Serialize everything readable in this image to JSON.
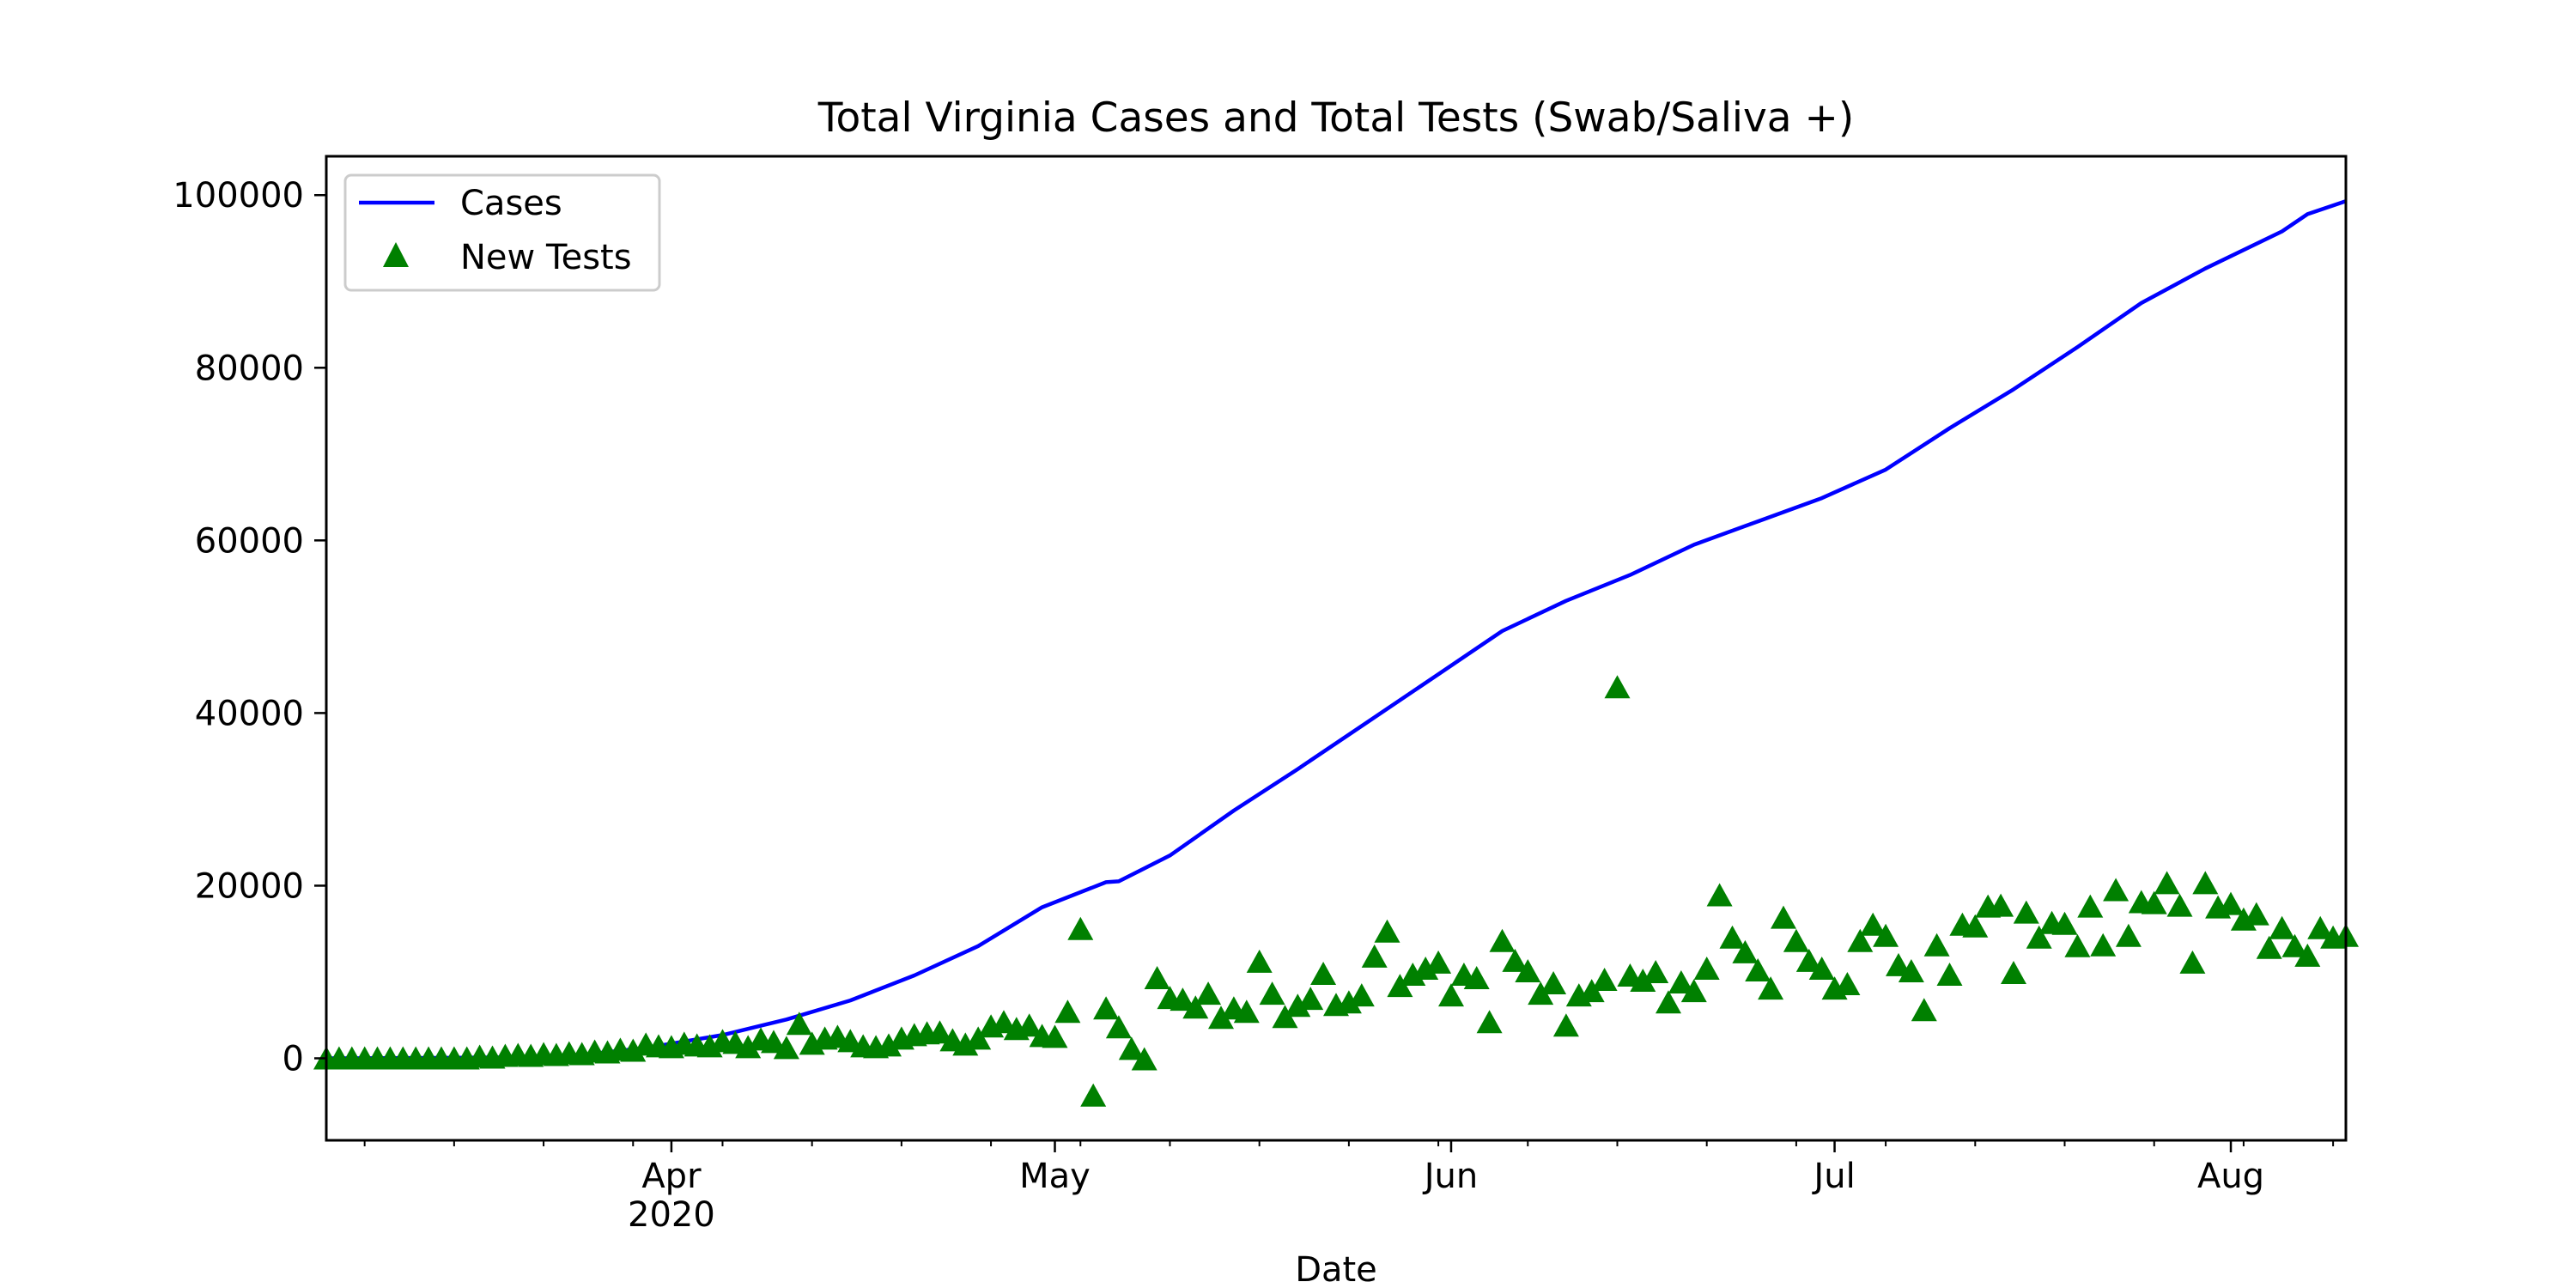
{
  "chart_data": {
    "type": "line",
    "title": "Total Virginia Cases and Total Tests (Swab/Saliva +)",
    "xlabel": "Date",
    "ylabel": "",
    "x_range": [
      "2020-03-05",
      "2020-08-10"
    ],
    "ylim": [
      -9500,
      104500
    ],
    "grid": false,
    "legend_position": "top-left",
    "x_ticks": [
      {
        "date": "2020-04-01",
        "label": "Apr",
        "sublabel": "2020"
      },
      {
        "date": "2020-05-01",
        "label": "May",
        "sublabel": ""
      },
      {
        "date": "2020-06-01",
        "label": "Jun",
        "sublabel": ""
      },
      {
        "date": "2020-07-01",
        "label": "Jul",
        "sublabel": ""
      },
      {
        "date": "2020-08-01",
        "label": "Aug",
        "sublabel": ""
      }
    ],
    "x_minor_tick_dates": [
      "2020-03-08",
      "2020-03-15",
      "2020-03-22",
      "2020-03-29",
      "2020-04-05",
      "2020-04-12",
      "2020-04-19",
      "2020-04-26",
      "2020-05-03",
      "2020-05-10",
      "2020-05-17",
      "2020-05-24",
      "2020-05-31",
      "2020-06-07",
      "2020-06-14",
      "2020-06-21",
      "2020-06-28",
      "2020-07-05",
      "2020-07-12",
      "2020-07-19",
      "2020-07-26",
      "2020-08-02",
      "2020-08-09"
    ],
    "y_ticks": [
      0,
      20000,
      40000,
      60000,
      80000,
      100000
    ],
    "y_tick_labels": [
      "0",
      "20000",
      "40000",
      "60000",
      "80000",
      "100000"
    ],
    "series": [
      {
        "name": "Cases",
        "type": "line",
        "color": "#0000ff",
        "x": [
          "2020-03-05",
          "2020-03-10",
          "2020-03-15",
          "2020-03-20",
          "2020-03-25",
          "2020-03-30",
          "2020-04-05",
          "2020-04-10",
          "2020-04-15",
          "2020-04-20",
          "2020-04-25",
          "2020-04-30",
          "2020-05-05",
          "2020-05-06",
          "2020-05-10",
          "2020-05-15",
          "2020-05-20",
          "2020-05-25",
          "2020-05-31",
          "2020-06-05",
          "2020-06-10",
          "2020-06-15",
          "2020-06-20",
          "2020-06-25",
          "2020-06-30",
          "2020-07-05",
          "2020-07-10",
          "2020-07-15",
          "2020-07-20",
          "2020-07-25",
          "2020-07-30",
          "2020-08-05",
          "2020-08-07",
          "2020-08-10"
        ],
        "y": [
          0,
          30,
          60,
          120,
          400,
          1200,
          2700,
          4500,
          6700,
          9600,
          13000,
          17500,
          20400,
          20500,
          23500,
          28700,
          33500,
          38500,
          44500,
          49500,
          53000,
          56000,
          59500,
          62200,
          64900,
          68200,
          73000,
          77500,
          82400,
          87500,
          91500,
          95800,
          97800,
          99300
        ]
      },
      {
        "name": "New Tests",
        "type": "scatter",
        "marker": "triangle",
        "color": "#008000",
        "x": [
          "2020-03-05",
          "2020-03-06",
          "2020-03-07",
          "2020-03-08",
          "2020-03-09",
          "2020-03-10",
          "2020-03-11",
          "2020-03-12",
          "2020-03-13",
          "2020-03-14",
          "2020-03-15",
          "2020-03-16",
          "2020-03-17",
          "2020-03-18",
          "2020-03-19",
          "2020-03-20",
          "2020-03-21",
          "2020-03-22",
          "2020-03-23",
          "2020-03-24",
          "2020-03-25",
          "2020-03-26",
          "2020-03-27",
          "2020-03-28",
          "2020-03-29",
          "2020-03-30",
          "2020-03-31",
          "2020-04-01",
          "2020-04-02",
          "2020-04-03",
          "2020-04-04",
          "2020-04-05",
          "2020-04-06",
          "2020-04-07",
          "2020-04-08",
          "2020-04-09",
          "2020-04-10",
          "2020-04-11",
          "2020-04-12",
          "2020-04-13",
          "2020-04-14",
          "2020-04-15",
          "2020-04-16",
          "2020-04-17",
          "2020-04-18",
          "2020-04-19",
          "2020-04-20",
          "2020-04-21",
          "2020-04-22",
          "2020-04-23",
          "2020-04-24",
          "2020-04-25",
          "2020-04-26",
          "2020-04-27",
          "2020-04-28",
          "2020-04-29",
          "2020-04-30",
          "2020-05-01",
          "2020-05-02",
          "2020-05-03",
          "2020-05-04",
          "2020-05-05",
          "2020-05-06",
          "2020-05-07",
          "2020-05-08",
          "2020-05-09",
          "2020-05-10",
          "2020-05-11",
          "2020-05-12",
          "2020-05-13",
          "2020-05-14",
          "2020-05-15",
          "2020-05-16",
          "2020-05-17",
          "2020-05-18",
          "2020-05-19",
          "2020-05-20",
          "2020-05-21",
          "2020-05-22",
          "2020-05-23",
          "2020-05-24",
          "2020-05-25",
          "2020-05-26",
          "2020-05-27",
          "2020-05-28",
          "2020-05-29",
          "2020-05-30",
          "2020-05-31",
          "2020-06-01",
          "2020-06-02",
          "2020-06-03",
          "2020-06-04",
          "2020-06-05",
          "2020-06-06",
          "2020-06-07",
          "2020-06-08",
          "2020-06-09",
          "2020-06-10",
          "2020-06-11",
          "2020-06-12",
          "2020-06-13",
          "2020-06-14",
          "2020-06-15",
          "2020-06-16",
          "2020-06-17",
          "2020-06-18",
          "2020-06-19",
          "2020-06-20",
          "2020-06-21",
          "2020-06-22",
          "2020-06-23",
          "2020-06-24",
          "2020-06-25",
          "2020-06-26",
          "2020-06-27",
          "2020-06-28",
          "2020-06-29",
          "2020-06-30",
          "2020-07-01",
          "2020-07-02",
          "2020-07-03",
          "2020-07-04",
          "2020-07-05",
          "2020-07-06",
          "2020-07-07",
          "2020-07-08",
          "2020-07-09",
          "2020-07-10",
          "2020-07-11",
          "2020-07-12",
          "2020-07-13",
          "2020-07-14",
          "2020-07-15",
          "2020-07-16",
          "2020-07-17",
          "2020-07-18",
          "2020-07-19",
          "2020-07-20",
          "2020-07-21",
          "2020-07-22",
          "2020-07-23",
          "2020-07-24",
          "2020-07-25",
          "2020-07-26",
          "2020-07-27",
          "2020-07-28",
          "2020-07-29",
          "2020-07-30",
          "2020-07-31",
          "2020-08-01",
          "2020-08-02",
          "2020-08-03",
          "2020-08-04",
          "2020-08-05",
          "2020-08-06",
          "2020-08-07",
          "2020-08-08",
          "2020-08-09",
          "2020-08-10"
        ],
        "y": [
          0,
          0,
          0,
          0,
          0,
          0,
          0,
          0,
          0,
          0,
          0,
          0,
          200,
          100,
          300,
          400,
          300,
          500,
          400,
          600,
          500,
          800,
          700,
          1000,
          900,
          1600,
          1400,
          1300,
          1700,
          1500,
          1400,
          2000,
          1800,
          1300,
          2200,
          1900,
          1200,
          4000,
          1700,
          2300,
          2500,
          2000,
          1400,
          1300,
          1500,
          2300,
          2700,
          2900,
          3000,
          2100,
          1600,
          2300,
          3700,
          4200,
          3400,
          3800,
          2600,
          2500,
          5400,
          15000,
          -4300,
          5800,
          3600,
          1100,
          -100,
          9300,
          7000,
          6800,
          5900,
          7500,
          4700,
          5800,
          5400,
          11200,
          7500,
          4800,
          6100,
          6900,
          9800,
          6200,
          6500,
          7300,
          11800,
          14700,
          8400,
          9700,
          10400,
          11100,
          7300,
          9700,
          9300,
          4200,
          13600,
          11300,
          10100,
          7500,
          8700,
          3800,
          7300,
          7800,
          9100,
          43000,
          9600,
          9000,
          10000,
          6500,
          8800,
          7800,
          10400,
          18900,
          14000,
          12300,
          10200,
          8100,
          16300,
          13600,
          11300,
          10400,
          8100,
          8600,
          13600,
          15500,
          14200,
          10800,
          10100,
          5600,
          13100,
          9700,
          15500,
          15300,
          17600,
          17700,
          9900,
          16900,
          14000,
          15700,
          15600,
          13000,
          17600,
          13100,
          19500,
          14200,
          18100,
          18000,
          20300,
          17700,
          11100,
          20300,
          17500,
          17900,
          16100,
          16700,
          12800,
          15100,
          13000,
          11900,
          15100,
          14000,
          14200
        ]
      }
    ]
  }
}
